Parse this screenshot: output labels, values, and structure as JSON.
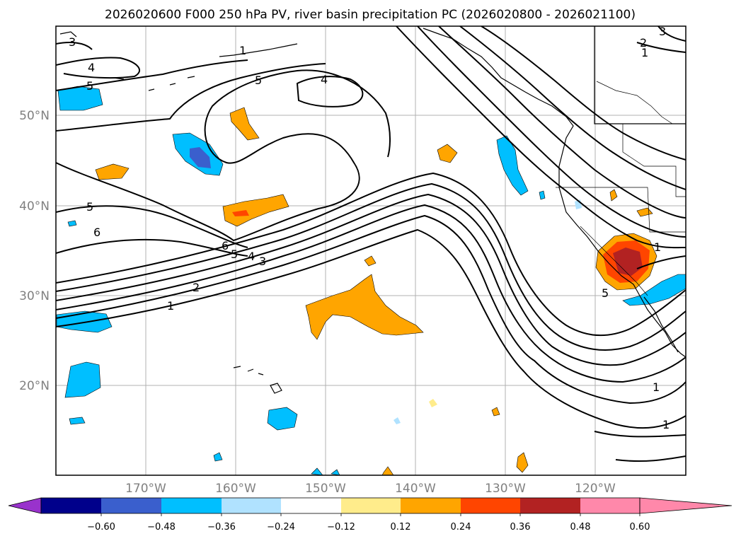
{
  "title": "2026020600 F000 250 hPa PV, river basin precipitation PC (2026020800 - 2026021100)",
  "map": {
    "lat_labels": [
      "50°N",
      "40°N",
      "30°N",
      "20°N"
    ],
    "lon_labels": [
      "170°W",
      "160°W",
      "150°W",
      "140°W",
      "130°W",
      "120°W"
    ],
    "contour_labels": [
      "3",
      "4",
      "5",
      "1",
      "5",
      "4",
      "2",
      "3",
      "1",
      "5",
      "6",
      "6",
      "5",
      "4",
      "3",
      "2",
      "1",
      "1",
      "5",
      "1",
      "1"
    ]
  },
  "colorbar": {
    "labels": [
      "−0.60",
      "−0.48",
      "−0.36",
      "−0.24",
      "−0.12",
      "0.12",
      "0.24",
      "0.36",
      "0.48",
      "0.60"
    ],
    "colors": [
      "#9932cc",
      "#00008b",
      "#3a5fcd",
      "#00bfff",
      "#b0e2ff",
      "#ffffff",
      "#ffec8b",
      "#ffa500",
      "#ff4500",
      "#b22222",
      "#ff88aa"
    ]
  },
  "colors": {
    "grid": "#b0b0b0",
    "contour": "#000000",
    "label_gray": "#808080"
  }
}
